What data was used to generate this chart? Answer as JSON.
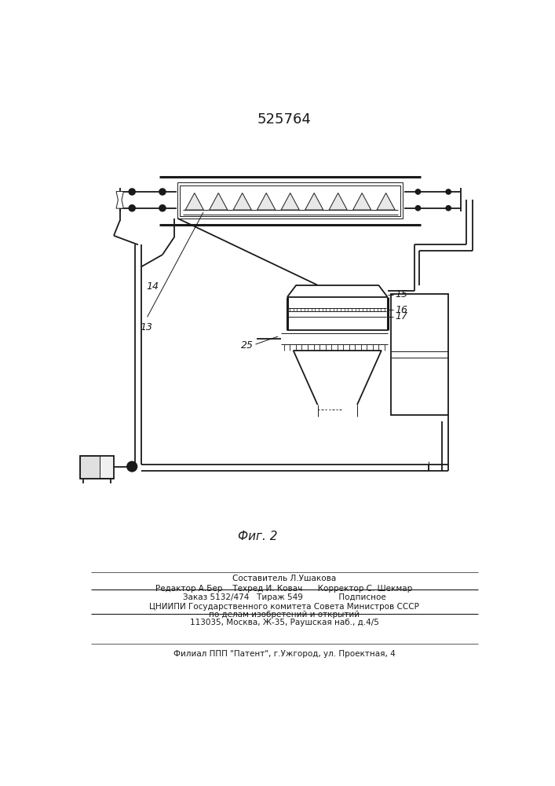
{
  "title": "525764",
  "fig_label": "Фиг. 2",
  "caption_line1": "Составитель Л.Ушакова",
  "caption_line2": "Редактор А.Бер    Техред И. Ковач      Корректор С. Шекмар",
  "caption_line3": "Заказ 5132/474   Тираж 549              Подписное",
  "caption_line4": "ЦНИИПИ Государственного комитета Совета Министров СССР",
  "caption_line5": "по делам изобретений и открытий",
  "caption_line6": "113035, Москва, Ж-35, Раушская наб., д.4/5",
  "caption_line7": "Филиал ППП \"Патент\", г.Ужгород, ул. Проектная, 4",
  "bg_color": "#ffffff",
  "line_color": "#1a1a1a",
  "label_13": "13",
  "label_14": "14",
  "label_15": "15",
  "label_16": "16",
  "label_17": "17",
  "label_25": "25"
}
